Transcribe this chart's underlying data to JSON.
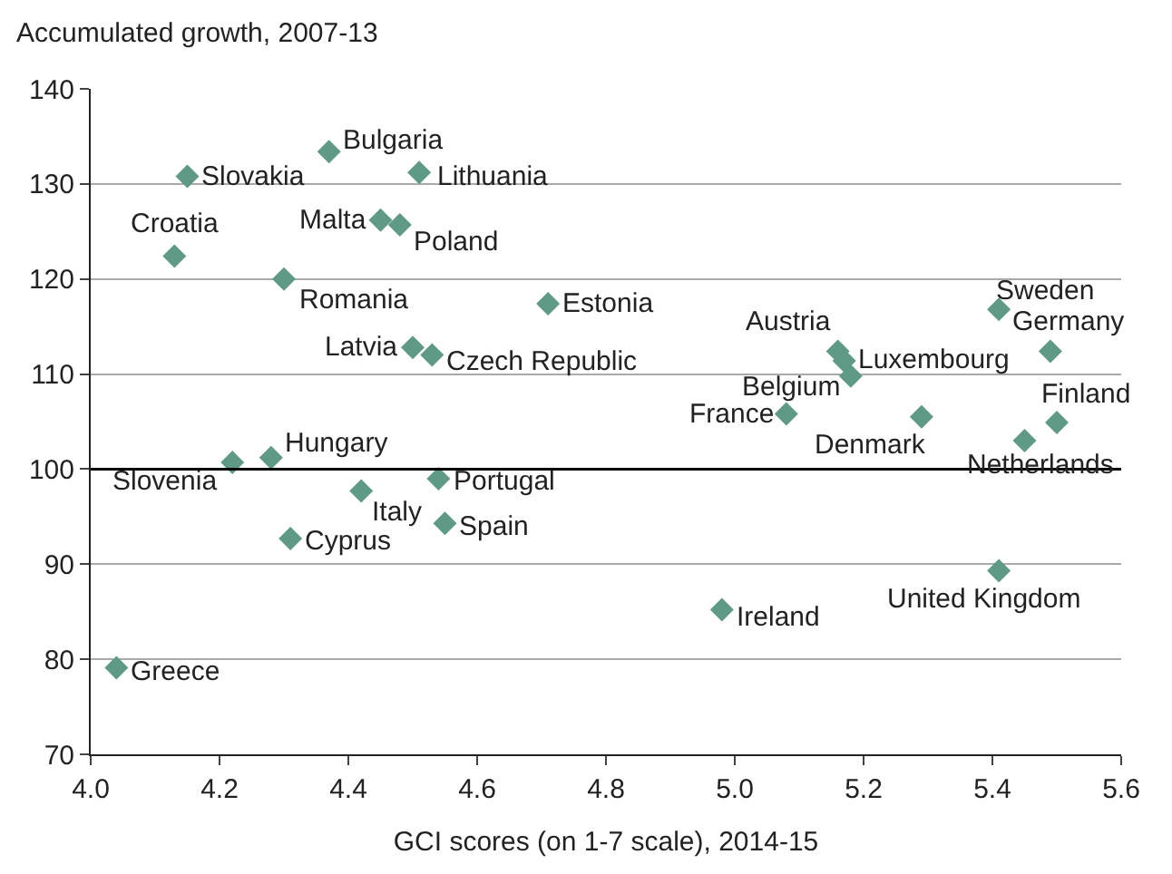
{
  "chart_data": {
    "type": "scatter",
    "xlabel": "GCI scores (on 1-7 scale), 2014-15",
    "ylabel": "Accumulated growth, 2007-13",
    "x": [
      4.15,
      4.37,
      4.51,
      4.13,
      4.45,
      4.48,
      4.3,
      4.71,
      4.5,
      4.53,
      4.22,
      4.28,
      4.42,
      4.54,
      4.55,
      4.31,
      4.04,
      5.41,
      5.49,
      5.16,
      5.17,
      5.18,
      5.08,
      5.29,
      5.5,
      5.45,
      5.41,
      4.98
    ],
    "values": [
      130.8,
      133.4,
      131.2,
      122.4,
      126.2,
      125.7,
      120.0,
      117.4,
      112.8,
      112.0,
      100.7,
      101.2,
      97.7,
      99.0,
      94.3,
      92.7,
      79.1,
      116.8,
      112.4,
      112.4,
      111.4,
      109.8,
      105.8,
      105.5,
      104.9,
      103.0,
      89.3,
      85.2
    ],
    "color": "#5e9a85",
    "marker": "diamond",
    "annotations": [
      {
        "text": "Slovakia",
        "x": 4.15,
        "y": 130.8
      },
      {
        "text": "Bulgaria",
        "x": 4.37,
        "y": 133.4
      },
      {
        "text": "Lithuania",
        "x": 4.51,
        "y": 131.2
      },
      {
        "text": "Croatia",
        "x": 4.13,
        "y": 122.4
      },
      {
        "text": "Malta",
        "x": 4.45,
        "y": 126.2
      },
      {
        "text": "Poland",
        "x": 4.48,
        "y": 125.7
      },
      {
        "text": "Romania",
        "x": 4.3,
        "y": 120.0
      },
      {
        "text": "Estonia",
        "x": 4.71,
        "y": 117.4
      },
      {
        "text": "Latvia",
        "x": 4.5,
        "y": 112.8
      },
      {
        "text": "Czech Republic",
        "x": 4.53,
        "y": 112.0
      },
      {
        "text": "Slovenia",
        "x": 4.22,
        "y": 100.7
      },
      {
        "text": "Hungary",
        "x": 4.28,
        "y": 101.2
      },
      {
        "text": "Italy",
        "x": 4.42,
        "y": 97.7
      },
      {
        "text": "Portugal",
        "x": 4.54,
        "y": 99.0
      },
      {
        "text": "Spain",
        "x": 4.55,
        "y": 94.3
      },
      {
        "text": "Cyprus",
        "x": 4.31,
        "y": 92.7
      },
      {
        "text": "Greece",
        "x": 4.04,
        "y": 79.1
      },
      {
        "text": "Sweden",
        "x": 5.41,
        "y": 116.8
      },
      {
        "text": "Germany",
        "x": 5.49,
        "y": 112.4
      },
      {
        "text": "Austria",
        "x": 5.16,
        "y": 112.4
      },
      {
        "text": "Luxembourg",
        "x": 5.17,
        "y": 111.4
      },
      {
        "text": "Belgium",
        "x": 5.18,
        "y": 109.8
      },
      {
        "text": "France",
        "x": 5.08,
        "y": 105.8
      },
      {
        "text": "Denmark",
        "x": 5.29,
        "y": 105.5
      },
      {
        "text": "Finland",
        "x": 5.5,
        "y": 104.9
      },
      {
        "text": "Netherlands",
        "x": 5.45,
        "y": 103.0
      },
      {
        "text": "United Kingdom",
        "x": 5.41,
        "y": 89.3
      },
      {
        "text": "Ireland",
        "x": 4.98,
        "y": 85.2
      }
    ],
    "ref_lines": [
      {
        "axis": "y",
        "value": 100,
        "color": "#000000"
      }
    ],
    "xlim": [
      4.0,
      5.6
    ],
    "xticks": [
      {
        "value": 4.0,
        "label": "4.0"
      },
      4.2,
      4.4,
      4.6,
      4.8,
      {
        "value": 5.0,
        "label": "5.0"
      },
      5.2,
      5.4,
      5.6
    ],
    "ylim": [
      70,
      140
    ],
    "yticks": [
      70,
      80,
      90,
      100,
      110,
      120,
      130,
      140
    ],
    "grid": "y",
    "legend": false
  }
}
